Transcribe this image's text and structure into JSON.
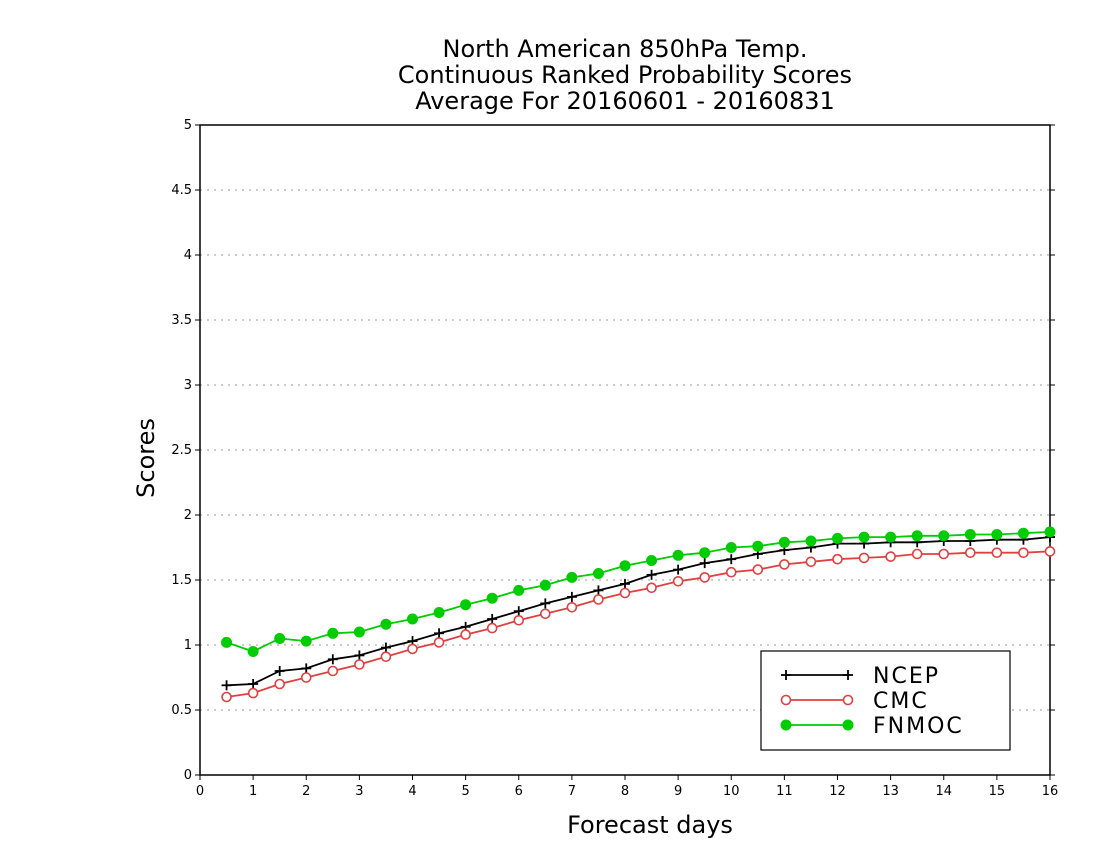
{
  "chart_data": {
    "type": "line",
    "title": [
      "North American 850hPa Temp.",
      "Continuous Ranked Probability Scores",
      "Average For 20160601 - 20160831"
    ],
    "xlabel": "Forecast days",
    "ylabel": "Scores",
    "xlim": [
      0,
      16
    ],
    "ylim": [
      0,
      5
    ],
    "xticks": [
      "0",
      "1",
      "2",
      "3",
      "4",
      "5",
      "6",
      "7",
      "8",
      "9",
      "10",
      "11",
      "12",
      "13",
      "14",
      "15",
      "16"
    ],
    "yticks": [
      "0",
      "0.5",
      "1",
      "1.5",
      "2",
      "2.5",
      "3",
      "3.5",
      "4",
      "4.5",
      "5"
    ],
    "grid": true,
    "legend_position": "bottom-right",
    "x": [
      0.5,
      1,
      1.5,
      2,
      2.5,
      3,
      3.5,
      4,
      4.5,
      5,
      5.5,
      6,
      6.5,
      7,
      7.5,
      8,
      8.5,
      9,
      9.5,
      10,
      10.5,
      11,
      11.5,
      12,
      12.5,
      13,
      13.5,
      14,
      14.5,
      15,
      15.5,
      16
    ],
    "series": [
      {
        "name": "NCEP",
        "color": "#000000",
        "marker": "plus",
        "values": [
          0.69,
          0.7,
          0.8,
          0.82,
          0.89,
          0.92,
          0.98,
          1.03,
          1.09,
          1.14,
          1.2,
          1.26,
          1.32,
          1.37,
          1.42,
          1.47,
          1.54,
          1.58,
          1.63,
          1.66,
          1.7,
          1.73,
          1.75,
          1.78,
          1.78,
          1.79,
          1.79,
          1.8,
          1.8,
          1.81,
          1.81,
          1.83
        ]
      },
      {
        "name": "CMC",
        "color": "#e04040",
        "marker": "open-circle",
        "values": [
          0.6,
          0.63,
          0.7,
          0.75,
          0.8,
          0.85,
          0.91,
          0.97,
          1.02,
          1.08,
          1.13,
          1.19,
          1.24,
          1.29,
          1.35,
          1.4,
          1.44,
          1.49,
          1.52,
          1.56,
          1.58,
          1.62,
          1.64,
          1.66,
          1.67,
          1.68,
          1.7,
          1.7,
          1.71,
          1.71,
          1.71,
          1.72
        ]
      },
      {
        "name": "FNMOC",
        "color": "#00cc00",
        "marker": "filled-circle",
        "values": [
          1.02,
          0.95,
          1.05,
          1.03,
          1.09,
          1.1,
          1.16,
          1.2,
          1.25,
          1.31,
          1.36,
          1.42,
          1.46,
          1.52,
          1.55,
          1.61,
          1.65,
          1.69,
          1.71,
          1.75,
          1.76,
          1.79,
          1.8,
          1.82,
          1.83,
          1.83,
          1.84,
          1.84,
          1.85,
          1.85,
          1.86,
          1.87
        ]
      }
    ]
  }
}
